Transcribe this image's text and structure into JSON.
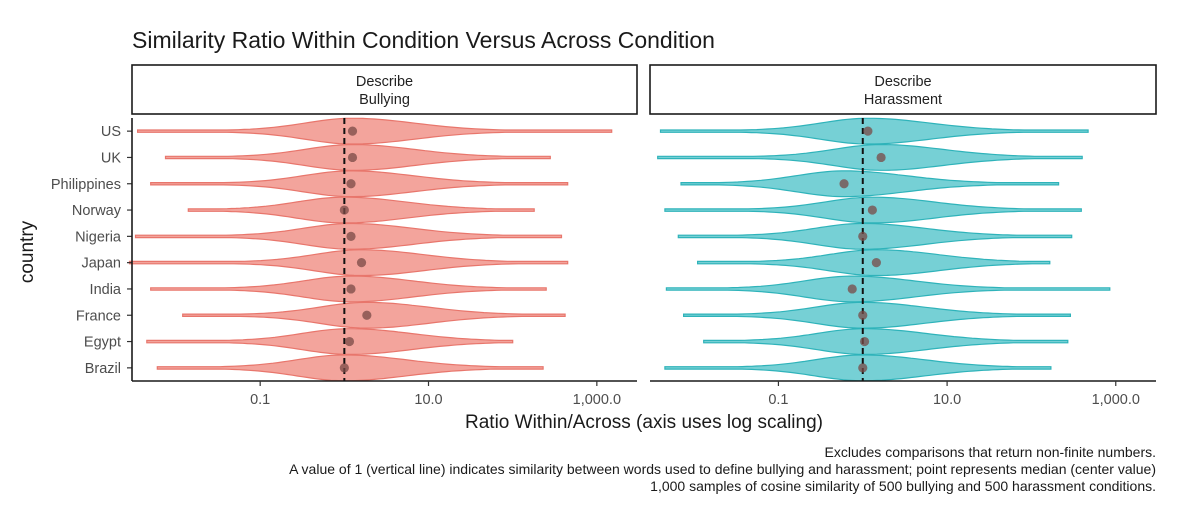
{
  "chart_data": {
    "type": "violin",
    "title": "Similarity Ratio Within Condition Versus Across Condition",
    "xlabel": "Ratio Within/Across (axis uses log scaling)",
    "ylabel": "country",
    "x_scale": "log10",
    "xlim": [
      0.003,
      3000
    ],
    "x_ticks": [
      0.1,
      10,
      1000
    ],
    "x_tick_labels": [
      "0.1",
      "10.0",
      "1,000.0"
    ],
    "reference_line": 1,
    "categories": [
      "US",
      "UK",
      "Philippines",
      "Norway",
      "Nigeria",
      "Japan",
      "India",
      "France",
      "Egypt",
      "Brazil"
    ],
    "panels": [
      {
        "label_line1": "Describe",
        "label_line2": "Bullying",
        "color": "#F08A80",
        "stroke": "#E8766C",
        "violins": [
          {
            "country": "US",
            "min": 0.0035,
            "max": 1500,
            "median": 1.25
          },
          {
            "country": "UK",
            "min": 0.0075,
            "max": 280,
            "median": 1.25
          },
          {
            "country": "Philippines",
            "min": 0.005,
            "max": 450,
            "median": 1.2
          },
          {
            "country": "Norway",
            "min": 0.014,
            "max": 180,
            "median": 1.0
          },
          {
            "country": "Nigeria",
            "min": 0.0033,
            "max": 380,
            "median": 1.2
          },
          {
            "country": "Japan",
            "min": 0.0028,
            "max": 450,
            "median": 1.6
          },
          {
            "country": "India",
            "min": 0.005,
            "max": 250,
            "median": 1.2
          },
          {
            "country": "France",
            "min": 0.012,
            "max": 420,
            "median": 1.85
          },
          {
            "country": "Egypt",
            "min": 0.0045,
            "max": 100,
            "median": 1.15
          },
          {
            "country": "Brazil",
            "min": 0.006,
            "max": 230,
            "median": 1.0
          }
        ]
      },
      {
        "label_line1": "Describe",
        "label_line2": "Harassment",
        "color": "#4FC3C9",
        "stroke": "#2FB3BA",
        "violins": [
          {
            "country": "US",
            "min": 0.004,
            "max": 470,
            "median": 1.15
          },
          {
            "country": "UK",
            "min": 0.0037,
            "max": 400,
            "median": 1.65
          },
          {
            "country": "Philippines",
            "min": 0.007,
            "max": 210,
            "median": 0.6
          },
          {
            "country": "Norway",
            "min": 0.0045,
            "max": 390,
            "median": 1.3
          },
          {
            "country": "Nigeria",
            "min": 0.0065,
            "max": 300,
            "median": 1.0
          },
          {
            "country": "Japan",
            "min": 0.011,
            "max": 165,
            "median": 1.45
          },
          {
            "country": "India",
            "min": 0.0047,
            "max": 850,
            "median": 0.75
          },
          {
            "country": "France",
            "min": 0.0075,
            "max": 290,
            "median": 1.0
          },
          {
            "country": "Egypt",
            "min": 0.013,
            "max": 270,
            "median": 1.05
          },
          {
            "country": "Brazil",
            "min": 0.0045,
            "max": 170,
            "median": 1.0
          }
        ]
      }
    ],
    "caption_lines": [
      "Excludes comparisons that return non-finite numbers.",
      "A value of 1 (vertical line) indicates similarity between words used to define bullying and harassment; point represents median (center value)",
      "1,000 samples of cosine similarity of 500 bullying and 500 harassment conditions."
    ]
  }
}
